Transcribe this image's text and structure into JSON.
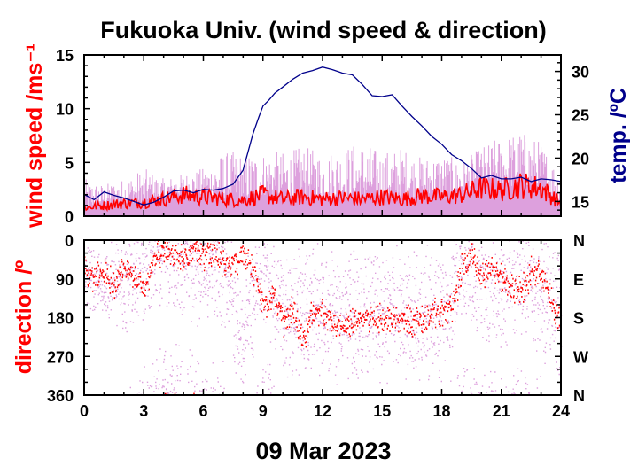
{
  "title": "Fukuoka Univ. (wind speed & direction)",
  "colors": {
    "speed_axis": "#ff0000",
    "temp_axis": "#00008b",
    "direction_axis": "#ff0000",
    "raw_data": "#dda0dd",
    "mean_line": "#ff0000",
    "temp_line": "#00008b"
  },
  "chart_data": [
    {
      "type": "line",
      "title": "Fukuoka Univ. (wind speed & direction)",
      "ylabel": "wind speed /ms⁻¹",
      "y2label": "temp. /ºC",
      "xlim": [
        0,
        24
      ],
      "ylim": [
        0,
        15
      ],
      "y2lim": [
        13.3,
        31.9
      ],
      "yticks": [
        "0",
        "5",
        "10",
        "15"
      ],
      "y2ticks": [
        "15",
        "20",
        "25",
        "30"
      ],
      "grid": false,
      "series": [
        {
          "axis": "left",
          "style": "raw-fill",
          "x": [
            0,
            1,
            2,
            3,
            4,
            5,
            6,
            7,
            8,
            9,
            10,
            11,
            12,
            13,
            14,
            15,
            16,
            17,
            18,
            19,
            20,
            21,
            22,
            23,
            24
          ],
          "values": [
            3.5,
            3.0,
            3.5,
            4.5,
            3.5,
            4.0,
            4.5,
            6.0,
            6.0,
            6.0,
            6.0,
            6.5,
            6.0,
            6.5,
            7.0,
            6.0,
            6.5,
            5.5,
            6.0,
            5.0,
            6.5,
            7.5,
            8.0,
            7.0,
            4.0
          ]
        },
        {
          "axis": "left",
          "style": "mean-line",
          "x": [
            0,
            1,
            2,
            3,
            4,
            5,
            6,
            7,
            8,
            9,
            10,
            11,
            12,
            13,
            14,
            15,
            16,
            17,
            18,
            19,
            20,
            21,
            22,
            23,
            24
          ],
          "values": [
            0.8,
            1.0,
            1.2,
            1.3,
            1.6,
            2.0,
            1.8,
            1.6,
            1.5,
            2.0,
            1.6,
            1.8,
            1.6,
            1.7,
            1.6,
            1.8,
            1.6,
            1.9,
            1.8,
            2.0,
            2.6,
            2.4,
            2.9,
            2.6,
            1.2
          ]
        },
        {
          "axis": "right",
          "style": "temp-line",
          "x": [
            0,
            0.5,
            1,
            1.5,
            2,
            2.5,
            3,
            3.5,
            4,
            4.5,
            5,
            5.5,
            6,
            6.5,
            7,
            7.5,
            8,
            8.5,
            8.8,
            9,
            9.3,
            9.6,
            10,
            10.5,
            11,
            11.5,
            12,
            12.5,
            13,
            13.5,
            14,
            14.5,
            15,
            15.5,
            16,
            16.5,
            17,
            17.5,
            18,
            18.5,
            19,
            19.5,
            20,
            20.5,
            21,
            21.5,
            22,
            22.5,
            23,
            23.5,
            24
          ],
          "values": [
            15.8,
            15.2,
            16.1,
            15.7,
            15.4,
            15.0,
            14.6,
            14.9,
            15.5,
            16.2,
            16.3,
            16.0,
            16.4,
            16.3,
            16.5,
            17.0,
            18.6,
            22.8,
            24.8,
            26.0,
            26.7,
            27.5,
            28.2,
            29.1,
            29.8,
            30.1,
            30.5,
            30.2,
            29.8,
            29.6,
            28.5,
            27.2,
            27.1,
            27.3,
            26.0,
            24.8,
            23.7,
            22.5,
            21.6,
            20.4,
            19.7,
            18.8,
            17.7,
            18.0,
            17.6,
            17.6,
            17.8,
            17.3,
            17.6,
            17.5,
            17.3
          ]
        }
      ]
    },
    {
      "type": "scatter",
      "ylabel": "direction /º",
      "xlabel": "09 Mar 2023",
      "xlim": [
        0,
        24
      ],
      "ylim": [
        0,
        360
      ],
      "xticks": [
        "0",
        "3",
        "6",
        "9",
        "12",
        "15",
        "18",
        "21",
        "24"
      ],
      "yticks": [
        "0",
        "90",
        "180",
        "270",
        "360"
      ],
      "y2ticks": [
        "N",
        "E",
        "S",
        "W",
        "N"
      ],
      "grid": false,
      "series": [
        {
          "style": "raw-points",
          "x": [
            0,
            1,
            2,
            3,
            4,
            5,
            6,
            7,
            8,
            9,
            10,
            11,
            12,
            13,
            14,
            15,
            16,
            17,
            18,
            19,
            20,
            21,
            22,
            23,
            24
          ],
          "values": [
            90,
            100,
            110,
            60,
            20,
            40,
            50,
            50,
            230,
            40,
            180,
            160,
            160,
            190,
            180,
            170,
            180,
            180,
            170,
            60,
            90,
            120,
            80,
            110,
            190
          ],
          "spread": [
            80,
            90,
            120,
            140,
            160,
            160,
            160,
            160,
            170,
            170,
            170,
            170,
            170,
            170,
            170,
            170,
            170,
            170,
            170,
            170,
            170,
            170,
            170,
            170,
            170
          ]
        },
        {
          "style": "mean-points",
          "x": [
            0,
            0.5,
            1,
            1.5,
            2,
            2.5,
            3,
            3.5,
            4,
            4.5,
            5,
            5.5,
            6,
            6.5,
            7,
            7.5,
            8,
            8.5,
            9,
            9.5,
            10,
            10.5,
            11,
            11.5,
            12,
            12.5,
            13,
            13.5,
            14,
            14.5,
            15,
            15.5,
            16,
            16.5,
            17,
            17.5,
            18,
            18.5,
            19,
            19.5,
            20,
            20.5,
            21,
            21.5,
            22,
            22.5,
            23,
            23.5,
            24
          ],
          "values": [
            70,
            90,
            80,
            100,
            60,
            90,
            120,
            40,
            20,
            30,
            50,
            30,
            40,
            30,
            50,
            60,
            40,
            70,
            160,
            120,
            190,
            160,
            240,
            170,
            170,
            190,
            200,
            190,
            180,
            170,
            190,
            180,
            180,
            190,
            180,
            170,
            170,
            160,
            60,
            40,
            80,
            60,
            90,
            110,
            120,
            70,
            90,
            140,
            200
          ]
        }
      ]
    }
  ]
}
